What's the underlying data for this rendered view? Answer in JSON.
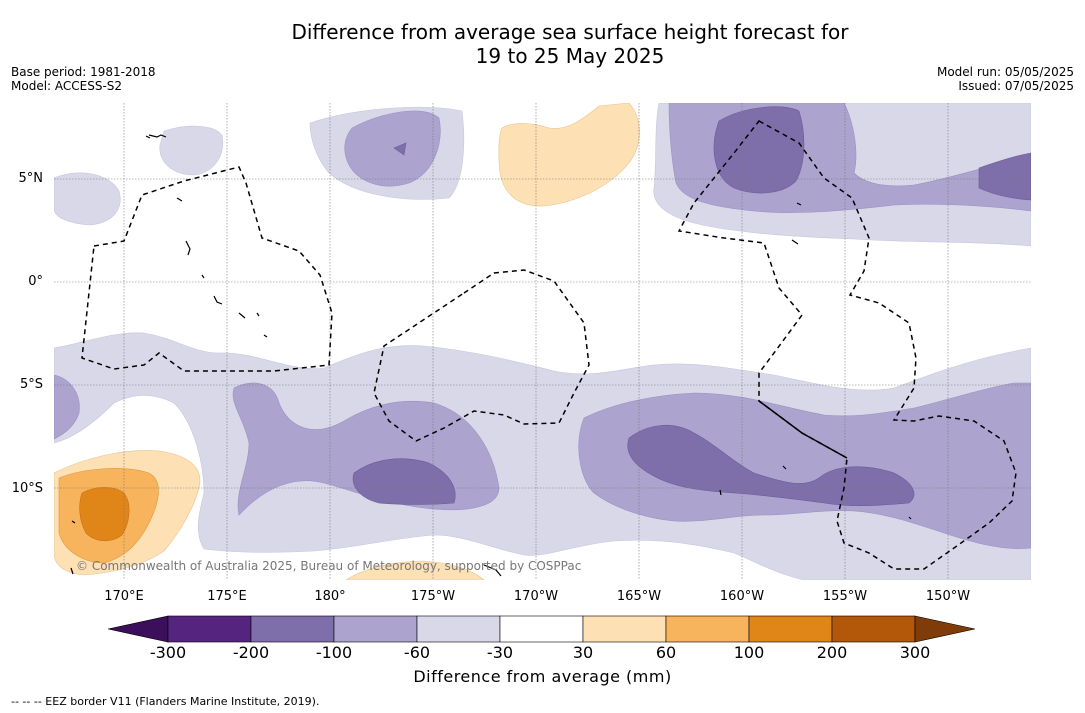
{
  "title": {
    "line1": "Difference from average sea surface height forecast for",
    "line2": "19 to 25 May 2025"
  },
  "meta_left": {
    "base_period": "Base period: 1981-2018",
    "model": "Model: ACCESS-S2"
  },
  "meta_right": {
    "model_run": "Model run: 05/05/2025",
    "issued": "Issued: 07/05/2025"
  },
  "map": {
    "latitude_labels": [
      "5°N",
      "0°",
      "5°S",
      "10°S"
    ],
    "longitude_labels": [
      "170°E",
      "175°E",
      "180°",
      "175°W",
      "170°W",
      "165°W",
      "160°W",
      "155°W",
      "150°W"
    ],
    "copyright": "© Commonwealth of Australia 2025, Bureau of Meteorology, supported by COSPPac",
    "gridlines": true
  },
  "colorbar": {
    "ticks": [
      "-300",
      "-200",
      "-100",
      "-60",
      "-30",
      "30",
      "60",
      "100",
      "200",
      "300"
    ],
    "colors": {
      "below_min": "#3b0f5c",
      "bins": [
        "#55247f",
        "#7e6faa",
        "#aca4cf",
        "#d9d8e9",
        "#ffffff",
        "#fde0b4",
        "#f8b45d",
        "#e08619",
        "#b35709"
      ],
      "above_max": "#7f3b08"
    },
    "label": "Difference from average (mm)"
  },
  "footnote": "--  --  -- EEZ border V11 (Flanders Marine Institute, 2019)."
}
